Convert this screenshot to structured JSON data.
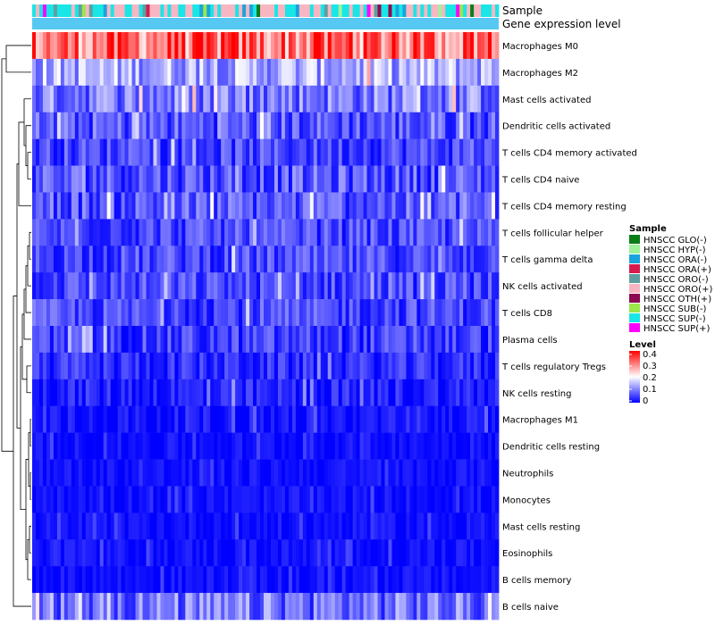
{
  "chart_data": {
    "type": "heatmap",
    "annotation_labels": [
      "Sample",
      "Gene expression level"
    ],
    "rows": [
      {
        "label": "Macrophages M0",
        "mean": 0.3,
        "spread": 0.1
      },
      {
        "label": "Macrophages M2",
        "mean": 0.13,
        "spread": 0.07
      },
      {
        "label": "Mast cells activated",
        "mean": 0.09,
        "spread": 0.07
      },
      {
        "label": "Dendritic cells activated",
        "mean": 0.06,
        "spread": 0.06
      },
      {
        "label": "T cells CD4 memory activated",
        "mean": 0.05,
        "spread": 0.05
      },
      {
        "label": "T cells CD4 naive",
        "mean": 0.06,
        "spread": 0.06
      },
      {
        "label": "T cells CD4 memory resting",
        "mean": 0.06,
        "spread": 0.06
      },
      {
        "label": "T cells follicular helper",
        "mean": 0.05,
        "spread": 0.05
      },
      {
        "label": "T cells gamma delta",
        "mean": 0.05,
        "spread": 0.05
      },
      {
        "label": "NK cells activated",
        "mean": 0.05,
        "spread": 0.05
      },
      {
        "label": "T cells CD8",
        "mean": 0.05,
        "spread": 0.05
      },
      {
        "label": "Plasma cells",
        "mean": 0.04,
        "spread": 0.05
      },
      {
        "label": "T cells regulatory  Tregs",
        "mean": 0.03,
        "spread": 0.04
      },
      {
        "label": "NK cells resting",
        "mean": 0.02,
        "spread": 0.04
      },
      {
        "label": "Macrophages M1",
        "mean": 0.01,
        "spread": 0.03
      },
      {
        "label": "Dendritic cells resting",
        "mean": 0.01,
        "spread": 0.02
      },
      {
        "label": "Neutrophils",
        "mean": 0.01,
        "spread": 0.02
      },
      {
        "label": "Monocytes",
        "mean": 0.01,
        "spread": 0.02
      },
      {
        "label": "Mast cells resting",
        "mean": 0.01,
        "spread": 0.02
      },
      {
        "label": "Eosinophils",
        "mean": 0.01,
        "spread": 0.02
      },
      {
        "label": "B cells memory",
        "mean": 0.01,
        "spread": 0.02
      },
      {
        "label": "B cells naive",
        "mean": 0.08,
        "spread": 0.07
      }
    ],
    "n_samples": 131,
    "sample_groups": [
      {
        "label": "HNSCC GLO(-)",
        "color": "#0a7d18"
      },
      {
        "label": "HNSCC HYP(-)",
        "color": "#9ef29a"
      },
      {
        "label": "HNSCC ORA(-)",
        "color": "#1aa3dd"
      },
      {
        "label": "HNSCC ORA(+)",
        "color": "#d61c4e"
      },
      {
        "label": "HNSCC ORO(-)",
        "color": "#5f9ea0"
      },
      {
        "label": "HNSCC ORO(+)",
        "color": "#f7b6c1"
      },
      {
        "label": "HNSCC OTH(+)",
        "color": "#8b0a50"
      },
      {
        "label": "HNSCC SUB(-)",
        "color": "#9be64a"
      },
      {
        "label": "HNSCC SUP(-)",
        "color": "#19e6e6"
      },
      {
        "label": "HNSCC SUP(+)",
        "color": "#ff00ff"
      }
    ],
    "sample_annotation_weights": [
      1,
      1,
      18,
      2,
      6,
      46,
      1,
      4,
      50,
      2
    ],
    "gene_expression_color": "#57c8f2",
    "legend_sample_title": "Sample",
    "legend_level_title": "Level",
    "level_ticks": [
      "0.4",
      "0.3",
      "0.2",
      "0.1",
      "0"
    ],
    "level_range": [
      0,
      0.4
    ],
    "colors": {
      "low": "#0000ff",
      "mid": "#ffffff",
      "high": "#ff0000"
    },
    "dendrogram": "row"
  }
}
